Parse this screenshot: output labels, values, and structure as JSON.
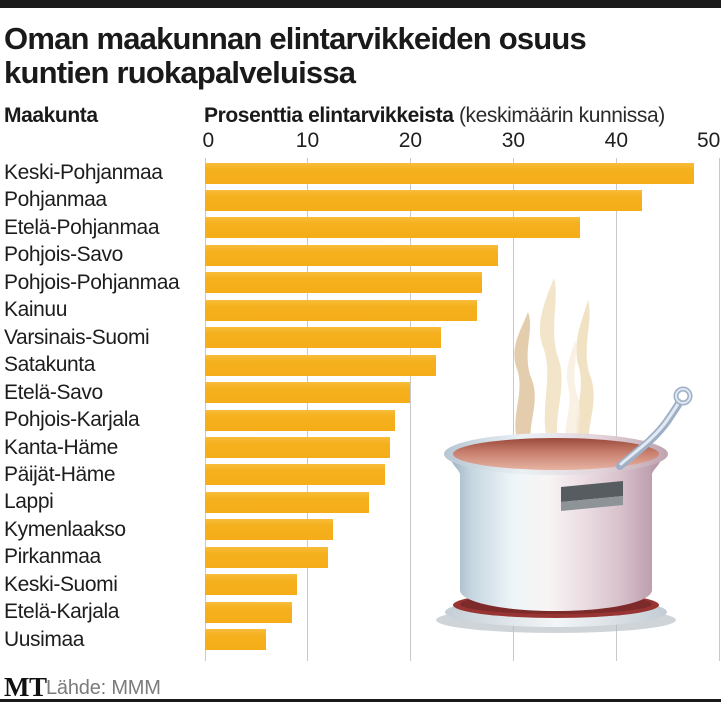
{
  "header": {
    "title_line1": "Oman maakunnan elintarvikkeiden osuus",
    "title_line2": "kuntien ruokapalveluissa",
    "col_region": "Maakunta",
    "col_value_bold": "Prosenttia elintarvikkeista",
    "col_value_note": "(keskimäärin kunnissa)"
  },
  "chart_data": {
    "type": "bar",
    "orientation": "horizontal",
    "title": "Oman maakunnan elintarvikkeiden osuus kuntien ruokapalveluissa",
    "xlabel": "Prosenttia elintarvikkeista (keskimäärin kunnissa)",
    "ylabel": "Maakunta",
    "categories": [
      "Keski-Pohjanmaa",
      "Pohjanmaa",
      "Etelä-Pohjanmaa",
      "Pohjois-Savo",
      "Pohjois-Pohjanmaa",
      "Kainuu",
      "Varsinais-Suomi",
      "Satakunta",
      "Etelä-Savo",
      "Pohjois-Karjala",
      "Kanta-Häme",
      "Päijät-Häme",
      "Lappi",
      "Kymenlaakso",
      "Pirkanmaa",
      "Keski-Suomi",
      "Etelä-Karjala",
      "Uusimaa"
    ],
    "values": [
      47.5,
      42.5,
      36.5,
      28.5,
      27,
      26.5,
      23,
      22.5,
      20,
      18.5,
      18,
      17.5,
      16,
      12.5,
      12,
      9,
      8.5,
      6
    ],
    "xticks": [
      0,
      10,
      20,
      30,
      40,
      50
    ],
    "xlim": [
      0,
      50
    ],
    "grid": true,
    "legend": "none",
    "bar_color": "#F5B01E",
    "gridline_color": "#C9C9C9"
  },
  "illustration": {
    "name": "steaming-cooking-pot-with-ladle"
  },
  "footer": {
    "logo": "MT",
    "source": "Lähde: MMM"
  }
}
